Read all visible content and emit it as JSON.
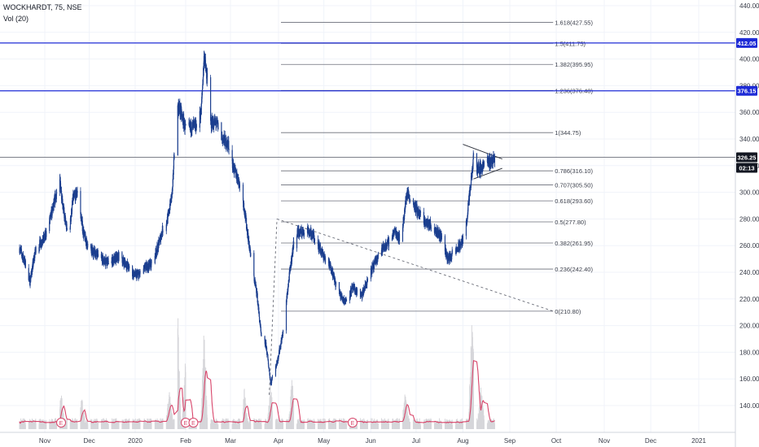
{
  "header": {
    "symbol_line": "WOCKHARDT, 75, NSE",
    "volume_line": "Vol (20)"
  },
  "colors": {
    "candle": "#1c3f8f",
    "grid": "#f0f3fa",
    "axis_text": "#3a3e4a",
    "hline": "#1e2bd6",
    "fib": "#6a6d78",
    "price_line": "#6a6d78",
    "volume": "#d6d6da",
    "vol_ma": "#d8456a"
  },
  "chart_data": {
    "type": "candlestick",
    "title": "WOCKHARDT, 75, NSE",
    "indicator": "Vol (20)",
    "ylim": [
      122,
      444
    ],
    "y_ticks": [
      140,
      160,
      180,
      200,
      220,
      240,
      260,
      280,
      300,
      320,
      340,
      360,
      380,
      400,
      420,
      440
    ],
    "y_tick_labels": [
      "140.00",
      "160.00",
      "180.00",
      "200.00",
      "220.00",
      "240.00",
      "260.00",
      "280.00",
      "300.00",
      "320.00",
      "340.00",
      "360.00",
      "380.00",
      "400.00",
      "420.00",
      "440.00"
    ],
    "x_axis": {
      "labels": [
        "Nov",
        "Dec",
        "2020",
        "Feb",
        "Mar",
        "Apr",
        "May",
        "Jun",
        "Jul",
        "Aug",
        "Sep",
        "Oct",
        "Nov",
        "Dec",
        "2021"
      ],
      "dates": [
        "2019-11-01",
        "2019-12-01",
        "2020-01-01",
        "2020-02-01",
        "2020-03-01",
        "2020-04-01",
        "2020-05-01",
        "2020-06-01",
        "2020-07-01",
        "2020-08-01",
        "2020-09-01",
        "2020-10-01",
        "2020-11-01",
        "2020-12-01",
        "2021-01-01"
      ]
    },
    "price_path": [
      [
        "2019-10-15",
        258
      ],
      [
        "2019-10-19",
        246
      ],
      [
        "2019-10-22",
        233
      ],
      [
        "2019-10-26",
        258
      ],
      [
        "2019-11-01",
        266
      ],
      [
        "2019-11-07",
        290
      ],
      [
        "2019-11-11",
        310
      ],
      [
        "2019-11-14",
        284
      ],
      [
        "2019-11-17",
        265
      ],
      [
        "2019-11-20",
        295
      ],
      [
        "2019-11-23",
        300
      ],
      [
        "2019-11-27",
        270
      ],
      [
        "2019-12-01",
        256
      ],
      [
        "2019-12-06",
        255
      ],
      [
        "2019-12-11",
        248
      ],
      [
        "2019-12-16",
        248
      ],
      [
        "2019-12-21",
        252
      ],
      [
        "2019-12-26",
        246
      ],
      [
        "2019-12-31",
        238
      ],
      [
        "2020-01-03",
        238
      ],
      [
        "2020-01-07",
        243
      ],
      [
        "2020-01-11",
        247
      ],
      [
        "2020-01-15",
        259
      ],
      [
        "2020-01-18",
        273
      ],
      [
        "2020-01-21",
        280
      ],
      [
        "2020-01-24",
        302
      ],
      [
        "2020-01-26",
        362
      ],
      [
        "2020-01-28",
        364
      ],
      [
        "2020-02-01",
        347
      ],
      [
        "2020-02-05",
        349
      ],
      [
        "2020-02-08",
        350
      ],
      [
        "2020-02-11",
        360
      ],
      [
        "2020-02-13",
        403
      ],
      [
        "2020-02-15",
        383
      ],
      [
        "2020-02-17",
        352
      ],
      [
        "2020-02-21",
        352
      ],
      [
        "2020-02-25",
        340
      ],
      [
        "2020-02-29",
        335
      ],
      [
        "2020-03-03",
        318
      ],
      [
        "2020-03-06",
        310
      ],
      [
        "2020-03-09",
        295
      ],
      [
        "2020-03-12",
        270
      ],
      [
        "2020-03-15",
        243
      ],
      [
        "2020-03-18",
        225
      ],
      [
        "2020-03-21",
        190
      ],
      [
        "2020-03-24",
        185
      ],
      [
        "2020-03-27",
        157
      ],
      [
        "2020-03-31",
        172
      ],
      [
        "2020-04-04",
        195
      ],
      [
        "2020-04-08",
        236
      ],
      [
        "2020-04-12",
        270
      ],
      [
        "2020-04-16",
        270
      ],
      [
        "2020-04-20",
        272
      ],
      [
        "2020-04-25",
        266
      ],
      [
        "2020-05-01",
        252
      ],
      [
        "2020-05-06",
        243
      ],
      [
        "2020-05-10",
        226
      ],
      [
        "2020-05-15",
        218
      ],
      [
        "2020-05-20",
        228
      ],
      [
        "2020-05-26",
        222
      ],
      [
        "2020-06-01",
        240
      ],
      [
        "2020-06-07",
        256
      ],
      [
        "2020-06-12",
        261
      ],
      [
        "2020-06-17",
        271
      ],
      [
        "2020-06-21",
        264
      ],
      [
        "2020-06-25",
        300
      ],
      [
        "2020-06-29",
        292
      ],
      [
        "2020-07-02",
        286
      ],
      [
        "2020-07-06",
        278
      ],
      [
        "2020-07-10",
        276
      ],
      [
        "2020-07-14",
        272
      ],
      [
        "2020-07-18",
        266
      ],
      [
        "2020-07-22",
        250
      ],
      [
        "2020-07-26",
        254
      ],
      [
        "2020-07-30",
        260
      ],
      [
        "2020-08-02",
        266
      ],
      [
        "2020-08-04",
        284
      ],
      [
        "2020-08-06",
        304
      ],
      [
        "2020-08-08",
        325
      ],
      [
        "2020-08-10",
        318
      ],
      [
        "2020-08-13",
        318
      ],
      [
        "2020-08-16",
        322
      ],
      [
        "2020-08-19",
        323
      ],
      [
        "2020-08-22",
        326
      ]
    ],
    "volume": {
      "baseline_level": 3,
      "spikes": [
        [
          "2019-11-12",
          12
        ],
        [
          "2019-11-26",
          8
        ],
        [
          "2020-01-22",
          11
        ],
        [
          "2020-01-27",
          44
        ],
        [
          "2020-02-01",
          25
        ],
        [
          "2020-02-13",
          35
        ],
        [
          "2020-03-10",
          12
        ],
        [
          "2020-03-27",
          14
        ],
        [
          "2020-04-10",
          16
        ],
        [
          "2020-06-24",
          12
        ],
        [
          "2020-08-07",
          45
        ],
        [
          "2020-08-13",
          14
        ]
      ]
    },
    "horizontal_lines": [
      {
        "price": 412.05,
        "label": "412.05"
      },
      {
        "price": 376.15,
        "label": "376.15"
      }
    ],
    "fibonacci": [
      {
        "ratio": "1.618",
        "price": 427.55,
        "label": "1.618(427.55)"
      },
      {
        "ratio": "1.5",
        "price": 411.75,
        "label": "1.5(411.75)"
      },
      {
        "ratio": "1.382",
        "price": 395.95,
        "label": "1.382(395.95)"
      },
      {
        "ratio": "1.236",
        "price": 376.4,
        "label": "1.236(376.40)"
      },
      {
        "ratio": "1",
        "price": 344.75,
        "label": "1(344.75)"
      },
      {
        "ratio": "0.786",
        "price": 316.1,
        "label": "0.786(316.10)"
      },
      {
        "ratio": "0.707",
        "price": 305.5,
        "label": "0.707(305.50)"
      },
      {
        "ratio": "0.618",
        "price": 293.6,
        "label": "0.618(293.60)"
      },
      {
        "ratio": "0.5",
        "price": 277.8,
        "label": "0.5(277.80)"
      },
      {
        "ratio": "0.382",
        "price": 261.95,
        "label": "0.382(261.95)"
      },
      {
        "ratio": "0.236",
        "price": 242.4,
        "label": "0.236(242.40)"
      },
      {
        "ratio": "0",
        "price": 210.8,
        "label": "0(210.80)"
      }
    ],
    "fib_range_dates": [
      "2020-04-01",
      "2020-09-29"
    ],
    "last_price": {
      "price": 326.25,
      "label": "326.25",
      "countdown": "02:13"
    },
    "trendlines": [
      {
        "style": "dashed",
        "from": [
          "2020-03-26",
          148
        ],
        "to": [
          "2020-03-31",
          280
        ]
      },
      {
        "style": "dashed",
        "from": [
          "2020-03-31",
          280
        ],
        "to": [
          "2020-09-29",
          210.8
        ]
      },
      {
        "style": "solid",
        "from": [
          "2020-08-01",
          336
        ],
        "to": [
          "2020-08-27",
          325
        ]
      },
      {
        "style": "solid",
        "from": [
          "2020-08-08",
          310
        ],
        "to": [
          "2020-08-27",
          318
        ]
      }
    ],
    "earnings_markers": [
      {
        "date": "2019-11-12",
        "label": "E"
      },
      {
        "date": "2020-02-01",
        "label": "E"
      },
      {
        "date": "2020-02-06",
        "label": "E"
      },
      {
        "date": "2020-05-20",
        "label": "E"
      }
    ]
  }
}
